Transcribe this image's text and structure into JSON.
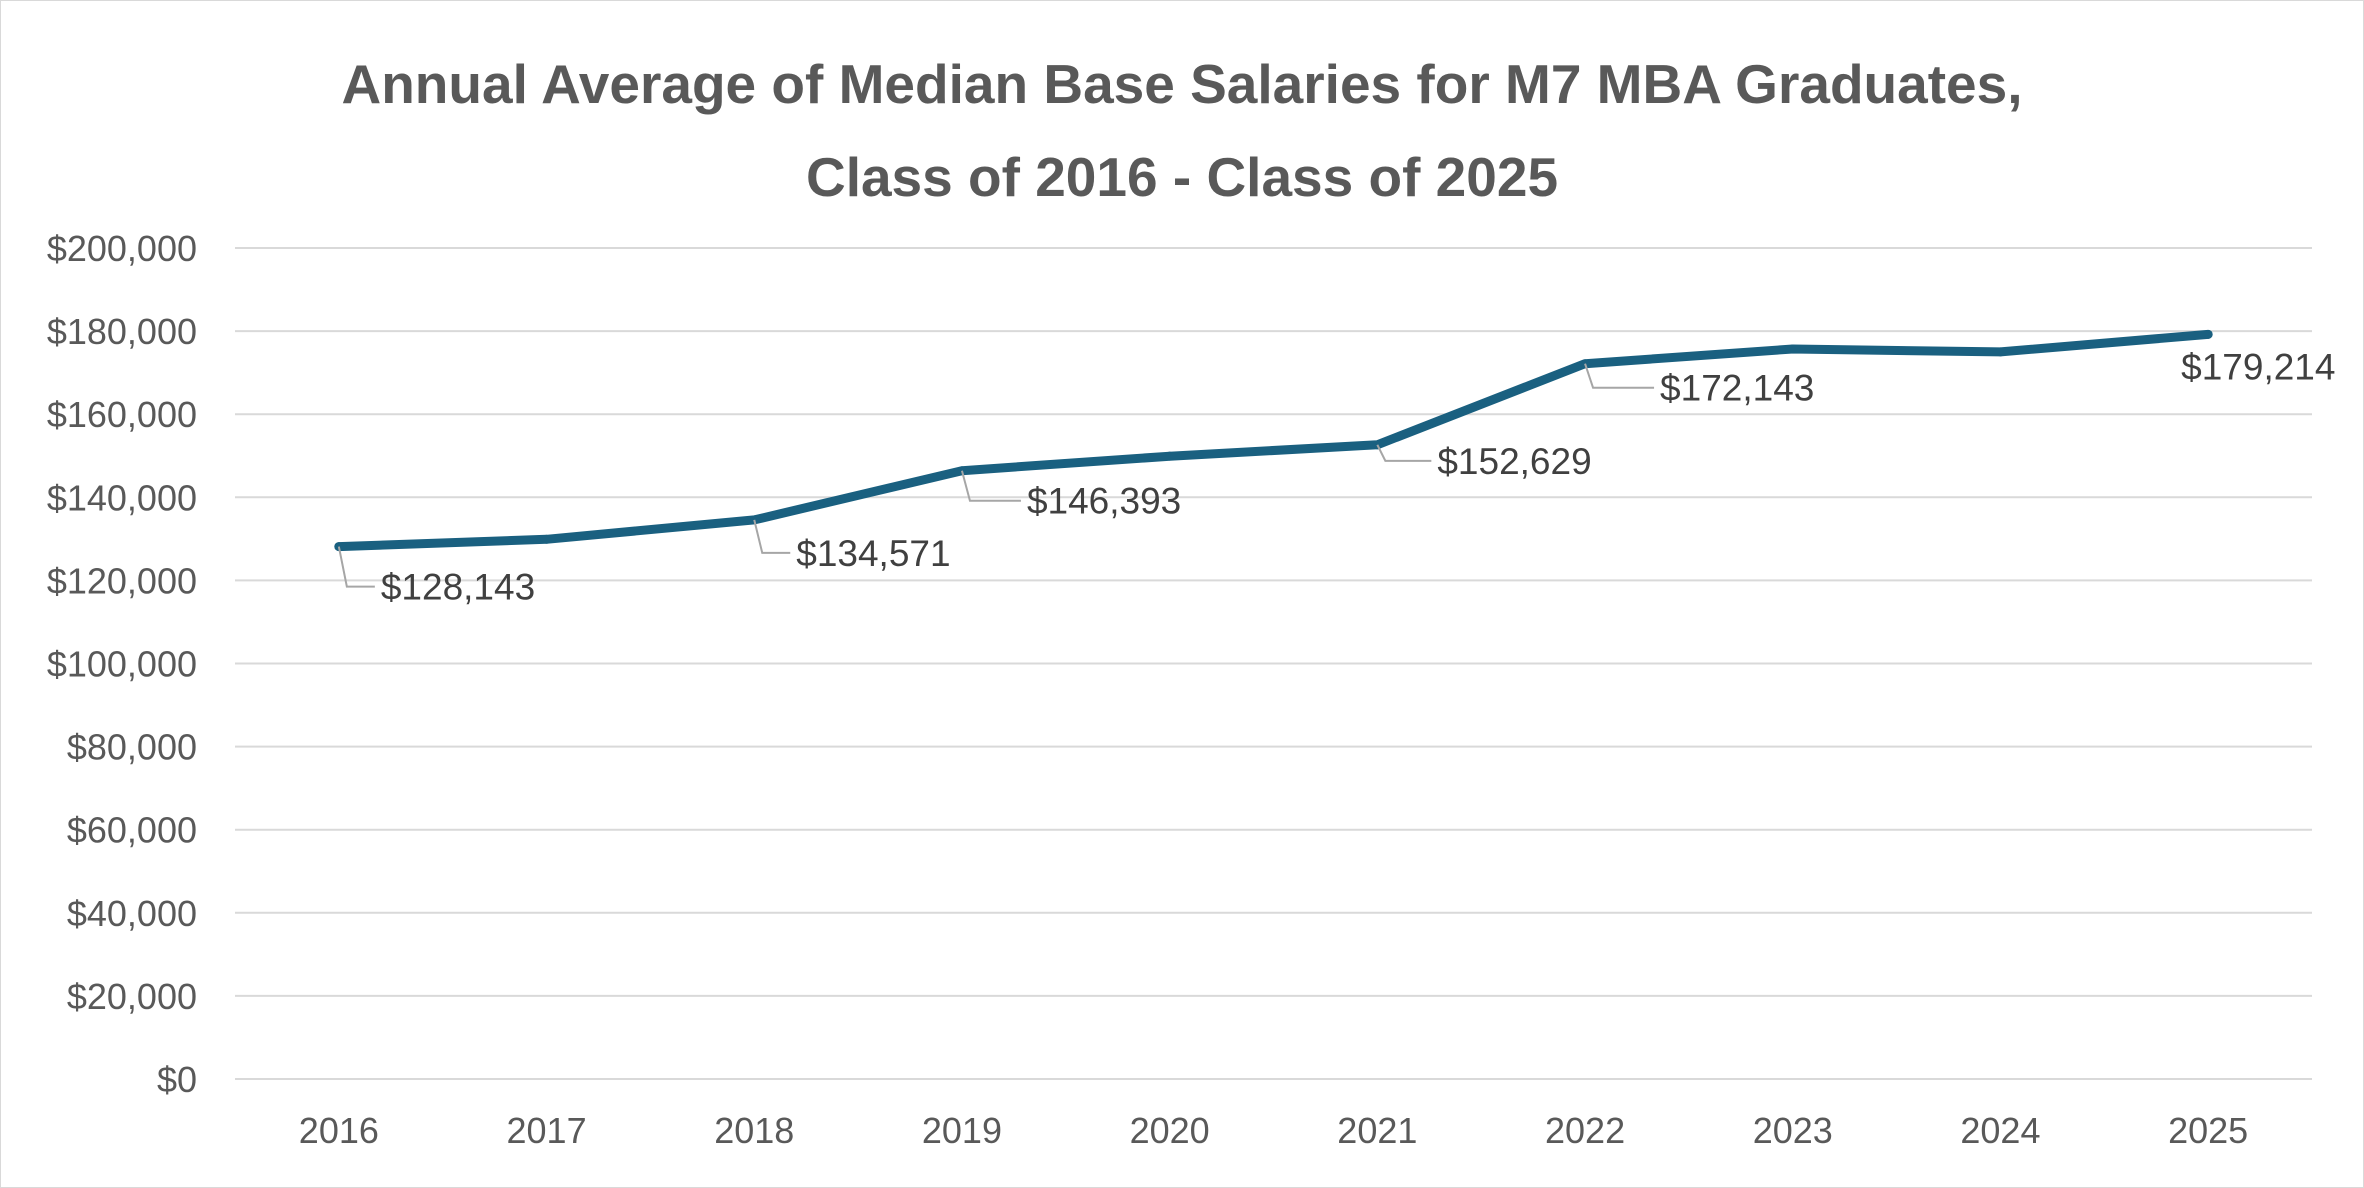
{
  "chart_data": {
    "type": "line",
    "title": "Annual Average of Median Base Salaries for M7 MBA Graduates,\nClass of 2016 - Class of 2025",
    "xlabel": "",
    "ylabel": "",
    "categories": [
      "2016",
      "2017",
      "2018",
      "2019",
      "2020",
      "2021",
      "2022",
      "2023",
      "2024",
      "2025"
    ],
    "series": [
      {
        "values": [
          128143,
          129900,
          134571,
          146393,
          149900,
          152629,
          172143,
          175700,
          175000,
          179214
        ],
        "color": "#1a6080"
      }
    ],
    "data_labels": [
      {
        "index": 0,
        "text": "$128,143"
      },
      {
        "index": 2,
        "text": "$134,571"
      },
      {
        "index": 3,
        "text": "$146,393"
      },
      {
        "index": 5,
        "text": "$152,629"
      },
      {
        "index": 6,
        "text": "$172,143"
      },
      {
        "index": 9,
        "text": "$179,214"
      }
    ],
    "ylim": [
      0,
      200000
    ],
    "yticks": [
      0,
      20000,
      40000,
      60000,
      80000,
      100000,
      120000,
      140000,
      160000,
      180000,
      200000
    ],
    "ytick_labels": [
      "$0",
      "$20,000",
      "$40,000",
      "$60,000",
      "$80,000",
      "$100,000",
      "$120,000",
      "$140,000",
      "$160,000",
      "$180,000",
      "$200,000"
    ],
    "grid": true,
    "legend": "none",
    "colors": {
      "line": "#1a6080",
      "grid": "#d9d9d9",
      "text": "#595959",
      "label_text": "#404040",
      "leader": "#a6a6a6"
    }
  }
}
